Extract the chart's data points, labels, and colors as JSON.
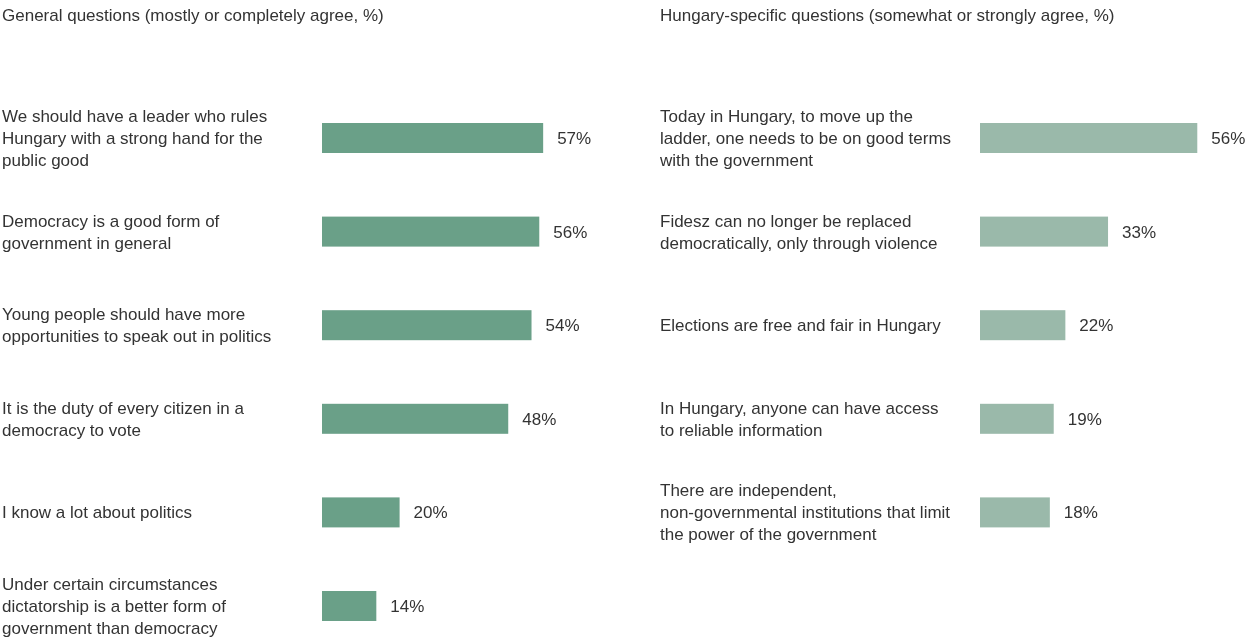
{
  "chart_data": [
    {
      "type": "bar",
      "orientation": "horizontal",
      "title": "General questions (mostly or completely agree, %)",
      "categories": [
        "We should have a leader who rules Hungary with a strong hand for the public good",
        "Democracy is a good form of government in general",
        "Young people should have more opportunities to speak out in politics",
        "It is the duty of every citizen in a democracy to vote",
        "I know a lot about politics",
        "Under certain circumstances dictatorship is a better form of government than democracy"
      ],
      "values": [
        57,
        56,
        54,
        48,
        20,
        14
      ],
      "value_labels": [
        "57%",
        "56%",
        "54%",
        "48%",
        "20%",
        "14%"
      ],
      "color": "#6aa088"
    },
    {
      "type": "bar",
      "orientation": "horizontal",
      "title": "Hungary-specific questions (somewhat or strongly agree, %)",
      "categories": [
        "Today in Hungary, to move up the ladder, one needs to be on good terms with the government",
        "Fidesz can no longer be replaced democratically, only through violence",
        "Elections are free and fair in Hungary",
        "In Hungary, anyone can have access to reliable information",
        "There are independent, non-governmental institutions that limit the power of the government"
      ],
      "values": [
        56,
        33,
        22,
        19,
        18
      ],
      "value_labels": [
        "56%",
        "33%",
        "22%",
        "19%",
        "18%"
      ],
      "color": "#9ab9aa"
    }
  ]
}
